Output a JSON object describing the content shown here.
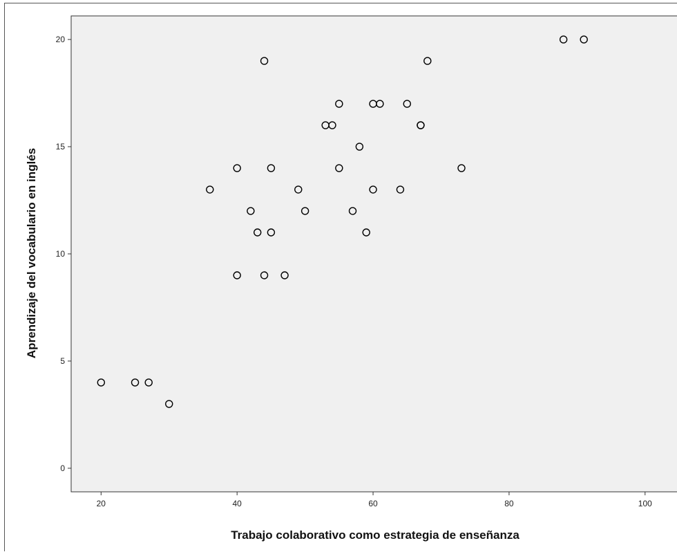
{
  "chart_data": {
    "type": "scatter",
    "title": "",
    "xlabel": "Trabajo colaborativo como estrategia de enseñanza",
    "ylabel": "Aprendizaje del vocabulario en inglés",
    "xlim": [
      15.6,
      105
    ],
    "ylim": [
      -1.1,
      21.1
    ],
    "xticks": [
      20,
      40,
      60,
      80,
      100
    ],
    "yticks": [
      0,
      5,
      10,
      15,
      20
    ],
    "grid": false,
    "background": "#f0f0f0",
    "marker_edge_color": "#000000",
    "series": [
      {
        "x": [
          20,
          25,
          27,
          30,
          36,
          40,
          40,
          42,
          43,
          44,
          44,
          45,
          45,
          47,
          49,
          50,
          53,
          54,
          55,
          55,
          57,
          58,
          59,
          60,
          60,
          61,
          64,
          65,
          67,
          67,
          68,
          73,
          88,
          91
        ],
        "y": [
          4,
          4,
          4,
          3,
          13,
          14,
          9,
          12,
          11,
          19,
          9,
          14,
          11,
          9,
          13,
          12,
          16,
          16,
          17,
          14,
          12,
          15,
          11,
          17,
          13,
          17,
          13,
          17,
          16,
          16,
          19,
          14,
          20,
          20
        ]
      }
    ]
  }
}
